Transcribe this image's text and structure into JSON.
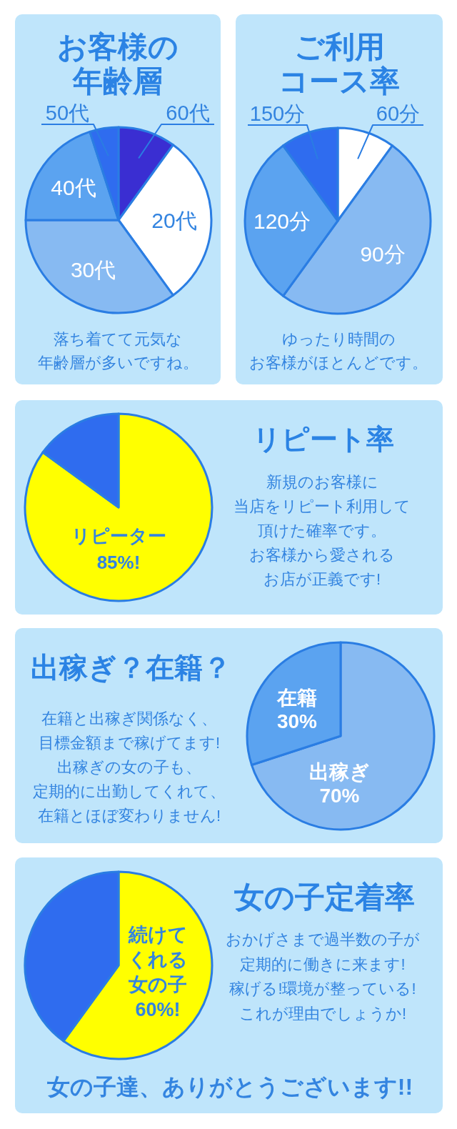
{
  "chart_data": [
    {
      "type": "pie",
      "title": "お客様の年齢層",
      "categories": [
        "60代",
        "20代",
        "30代",
        "40代",
        "50代"
      ],
      "values": [
        10,
        30,
        35,
        20,
        5
      ],
      "colors": [
        "#3a2ed2",
        "#ffffff",
        "#87baf2",
        "#5ba3f0",
        "#2f6cef"
      ],
      "annotations": [
        "落ち着てて元気な年齢層が多いですね。"
      ]
    },
    {
      "type": "pie",
      "title": "ご利用コース率",
      "categories": [
        "60分",
        "90分",
        "120分",
        "150分"
      ],
      "values": [
        10,
        50,
        30,
        10
      ],
      "colors": [
        "#ffffff",
        "#87baf2",
        "#5ba3f0",
        "#2f6cef"
      ],
      "annotations": [
        "ゆったり時間のお客様がほとんどです。"
      ]
    },
    {
      "type": "pie",
      "title": "リピート率",
      "categories": [
        "リピーター",
        null
      ],
      "values": [
        85,
        15
      ],
      "value_labels": [
        "85%!",
        null
      ],
      "colors": [
        "#ffff00",
        "#2f6cef"
      ],
      "annotations": [
        "新規のお客様に当店をリピート利用して頂けた確率です。お客様から愛されるお店が正義です!"
      ]
    },
    {
      "type": "pie",
      "title": "出稼ぎ？在籍？",
      "categories": [
        "出稼ぎ",
        "在籍"
      ],
      "values": [
        70,
        30
      ],
      "value_labels": [
        "70%",
        "30%"
      ],
      "colors": [
        "#87baf2",
        "#5ba3f0"
      ],
      "annotations": [
        "在籍と出稼ぎ関係なく、目標金額まで稼げてます!出稼ぎの女の子も、定期的に出勤してくれて、在籍とほぼ変わりません!"
      ]
    },
    {
      "type": "pie",
      "title": "女の子定着率",
      "categories": [
        "続けてくれる女の子",
        null
      ],
      "values": [
        60,
        40
      ],
      "value_labels": [
        "60%!",
        null
      ],
      "colors": [
        "#ffff00",
        "#2f6cef"
      ],
      "annotations": [
        "おかげさまで過半数の子が定期的に働きに来ます!稼げる!環境が整っている!これが理由でしょうか!",
        "女の子達、ありがとうございます!!"
      ]
    }
  ]
}
